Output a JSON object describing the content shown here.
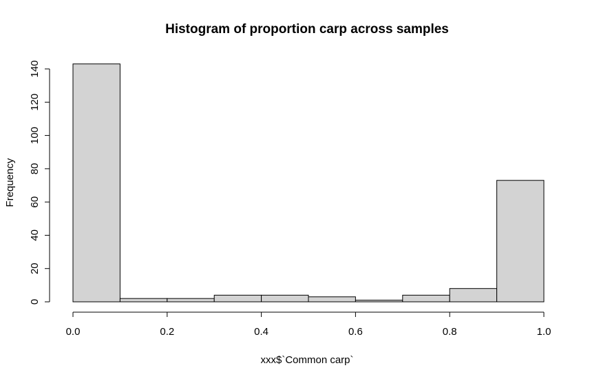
{
  "chart_data": {
    "type": "bar",
    "title": "Histogram of proportion carp across samples",
    "xlabel": "xxx$`Common carp`",
    "ylabel": "Frequency",
    "bin_edges": [
      0.0,
      0.1,
      0.2,
      0.3,
      0.4,
      0.5,
      0.6,
      0.7,
      0.8,
      0.9,
      1.0
    ],
    "values": [
      143,
      2,
      2,
      4,
      4,
      3,
      1,
      4,
      8,
      73
    ],
    "xlim": [
      0,
      1
    ],
    "ylim": [
      0,
      140
    ],
    "x_ticks": [
      0.0,
      0.2,
      0.4,
      0.6,
      0.8,
      1.0
    ],
    "x_tick_labels": [
      "0.0",
      "0.2",
      "0.4",
      "0.6",
      "0.8",
      "1.0"
    ],
    "y_ticks": [
      0,
      20,
      40,
      60,
      80,
      100,
      120,
      140
    ],
    "y_tick_labels": [
      "0",
      "20",
      "40",
      "60",
      "80",
      "100",
      "120",
      "140"
    ],
    "bar_fill": "#d3d3d3",
    "bar_stroke": "#000000",
    "grid": false,
    "legend": "none"
  }
}
